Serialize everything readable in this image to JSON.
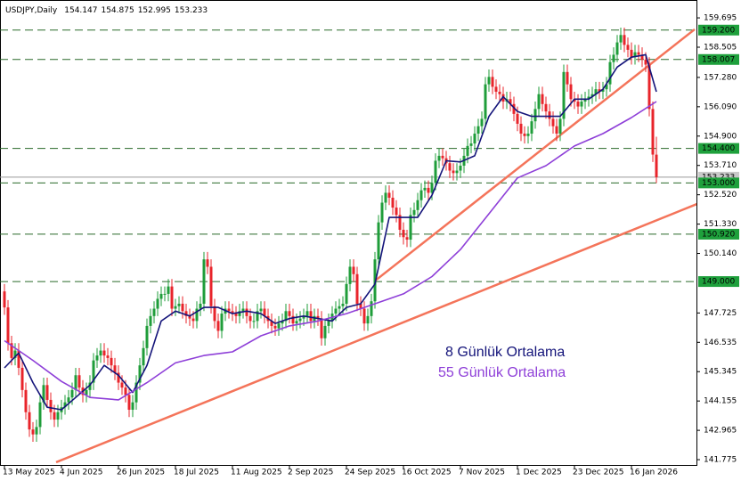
{
  "chart_data": {
    "type": "candlestick",
    "title": "USDJPY,Daily",
    "categories": [
      "13 May 2025",
      null,
      null,
      null,
      null,
      null,
      null,
      null,
      null,
      null,
      null,
      null,
      null,
      null,
      null,
      null,
      "4 Jun 2025",
      null,
      null,
      null,
      null,
      null,
      null,
      null,
      null,
      null,
      null,
      null,
      null,
      null,
      null,
      null,
      "26 Jun 2025",
      null,
      null,
      null,
      null,
      null,
      null,
      null,
      null,
      null,
      null,
      null,
      null,
      null,
      null,
      null,
      "18 Jul 2025",
      null,
      null,
      null,
      null,
      null,
      null,
      null,
      null,
      null,
      null,
      null,
      null,
      null,
      null,
      null,
      "11 Aug 2025",
      null,
      null,
      null,
      null,
      null,
      null,
      null,
      null,
      null,
      null,
      null,
      null,
      null,
      null,
      null,
      "2 Sep 2025",
      null,
      null,
      null,
      null,
      null,
      null,
      null,
      null,
      null,
      null,
      null,
      null,
      null,
      null,
      null,
      "24 Sep 2025",
      null,
      null,
      null,
      null,
      null,
      null,
      null,
      null,
      null,
      null,
      null,
      null,
      null,
      null,
      null,
      "16 Oct 2025",
      null,
      null,
      null,
      null,
      null,
      null,
      null,
      null,
      null,
      null,
      null,
      null,
      null,
      null,
      null,
      "7 Nov 2025",
      null,
      null,
      null,
      null,
      null,
      null,
      null,
      null,
      null,
      null,
      null,
      null,
      null,
      null,
      null,
      "1 Dec 2025",
      null,
      null,
      null,
      null,
      null,
      null,
      null,
      null,
      null,
      null,
      null,
      null,
      null,
      null,
      null,
      "23 Dec 2025",
      null,
      null,
      null,
      null,
      null,
      null,
      null,
      null,
      null,
      null,
      null,
      null,
      null,
      null,
      null,
      "16 Jan 2026",
      null,
      null,
      null,
      null,
      null,
      null,
      null
    ],
    "open": [
      148.6,
      147.95,
      146.5,
      145.9,
      146.2,
      145.5,
      144.6,
      143.7,
      143.0,
      142.8,
      143.1,
      144.1,
      144.8,
      144.2,
      143.7,
      143.4,
      143.7,
      143.9,
      144.1,
      144.3,
      144.6,
      145.2,
      144.7,
      144.4,
      144.6,
      144.9,
      145.8,
      146.0,
      146.2,
      146.0,
      145.9,
      145.6,
      145.3,
      144.9,
      144.7,
      144.4,
      143.8,
      144.1,
      144.9,
      145.6,
      146.3,
      147.2,
      147.6,
      147.9,
      148.3,
      148.5,
      148.5,
      148.8,
      147.9,
      148.0,
      148.1,
      147.8,
      147.6,
      147.5,
      147.4,
      147.9,
      148.1,
      149.9,
      149.6,
      148.0,
      147.4,
      147.0,
      147.7,
      147.9,
      147.8,
      147.7,
      147.6,
      147.8,
      147.9,
      147.6,
      147.4,
      147.4,
      147.8,
      147.9,
      147.6,
      147.4,
      147.2,
      147.1,
      147.3,
      147.4,
      147.8,
      147.6,
      147.3,
      147.4,
      147.5,
      147.6,
      147.8,
      147.4,
      147.6,
      147.5,
      146.7,
      147.2,
      147.4,
      147.7,
      147.9,
      148.0,
      148.1,
      148.9,
      149.6,
      149.3,
      148.1,
      147.9,
      147.3,
      147.6,
      148.2,
      149.9,
      151.4,
      152.2,
      152.6,
      152.4,
      152.0,
      151.7,
      151.1,
      150.8,
      150.7,
      151.7,
      151.9,
      152.3,
      152.7,
      152.8,
      152.6,
      153.0,
      153.9,
      154.1,
      154.0,
      153.8,
      153.5,
      153.4,
      153.5,
      153.7,
      154.1,
      154.5,
      154.6,
      155.0,
      155.3,
      155.6,
      157.0,
      157.3,
      156.9,
      156.7,
      156.6,
      156.3,
      156.4,
      156.2,
      155.8,
      155.4,
      155.0,
      154.9,
      155.0,
      155.5,
      156.0,
      156.6,
      156.2,
      155.9,
      155.6,
      155.3,
      155.0,
      155.6,
      157.5,
      157.0,
      156.4,
      156.3,
      156.1,
      156.3,
      156.4,
      156.5,
      156.6,
      156.8,
      156.7,
      156.8,
      157.0,
      157.9,
      158.2,
      158.7,
      159.0,
      158.6,
      158.4,
      158.1,
      158.3,
      158.2,
      158.0,
      157.8,
      156.0,
      154.147
    ],
    "high": [
      148.9,
      148.25,
      146.8,
      146.5,
      146.5,
      145.8,
      144.9,
      144.0,
      143.3,
      143.4,
      144.4,
      145.1,
      145.1,
      144.5,
      144.0,
      144.0,
      144.2,
      144.4,
      144.6,
      144.9,
      145.5,
      145.5,
      145.0,
      144.9,
      145.2,
      146.1,
      146.3,
      146.5,
      146.5,
      146.3,
      146.2,
      145.9,
      145.6,
      145.2,
      145.0,
      144.7,
      144.4,
      145.2,
      145.9,
      146.6,
      147.5,
      147.9,
      148.2,
      148.6,
      148.8,
      148.8,
      149.1,
      149.1,
      148.3,
      148.4,
      148.4,
      148.1,
      147.9,
      147.8,
      148.2,
      148.4,
      150.2,
      150.2,
      149.9,
      148.3,
      147.7,
      148.0,
      148.2,
      148.2,
      148.1,
      148.0,
      148.1,
      148.2,
      148.2,
      147.9,
      147.7,
      148.1,
      148.2,
      148.2,
      147.9,
      147.7,
      147.5,
      147.6,
      147.7,
      148.1,
      148.1,
      147.9,
      147.7,
      147.8,
      147.9,
      148.1,
      148.1,
      147.9,
      147.9,
      147.8,
      147.5,
      147.7,
      148.0,
      148.2,
      148.3,
      148.4,
      149.2,
      149.9,
      149.9,
      149.6,
      148.4,
      148.2,
      147.9,
      148.5,
      150.2,
      151.7,
      152.5,
      152.9,
      152.9,
      152.7,
      152.3,
      152.0,
      151.4,
      151.1,
      152.0,
      152.2,
      152.6,
      153.0,
      153.1,
      153.1,
      153.3,
      154.2,
      154.4,
      154.4,
      154.3,
      154.1,
      153.8,
      153.8,
      154.0,
      154.4,
      154.8,
      154.9,
      155.3,
      155.6,
      155.9,
      157.3,
      157.6,
      157.6,
      157.2,
      157.0,
      156.9,
      156.7,
      156.7,
      156.5,
      156.1,
      155.7,
      155.3,
      155.3,
      155.8,
      156.3,
      156.9,
      156.9,
      156.5,
      156.2,
      155.9,
      155.6,
      155.9,
      157.8,
      157.8,
      157.3,
      156.7,
      156.6,
      156.6,
      156.7,
      156.8,
      156.9,
      157.1,
      157.1,
      157.1,
      157.3,
      158.2,
      158.5,
      159.0,
      159.3,
      159.3,
      158.9,
      158.7,
      158.6,
      158.6,
      158.5,
      158.3,
      158.1,
      156.3,
      154.875
    ],
    "low": [
      147.65,
      146.2,
      145.6,
      145.6,
      145.2,
      144.3,
      143.4,
      142.7,
      142.5,
      142.5,
      142.8,
      143.8,
      143.9,
      143.4,
      143.1,
      143.1,
      143.4,
      143.6,
      143.8,
      144.0,
      144.3,
      144.4,
      144.1,
      144.1,
      144.3,
      144.6,
      145.5,
      145.7,
      145.7,
      145.6,
      145.3,
      145.0,
      144.6,
      144.4,
      144.1,
      143.5,
      143.5,
      143.8,
      144.6,
      145.3,
      146.0,
      146.9,
      147.3,
      147.6,
      148.0,
      148.2,
      148.2,
      147.6,
      147.6,
      147.7,
      147.5,
      147.3,
      147.2,
      147.1,
      147.1,
      147.6,
      147.8,
      149.3,
      147.7,
      147.1,
      146.7,
      146.7,
      147.4,
      147.5,
      147.4,
      147.3,
      147.3,
      147.5,
      147.3,
      147.1,
      147.1,
      147.1,
      147.5,
      147.3,
      147.1,
      146.9,
      146.8,
      146.8,
      147.0,
      147.1,
      147.3,
      147.0,
      147.0,
      147.1,
      147.2,
      147.3,
      147.1,
      147.1,
      147.2,
      146.4,
      146.4,
      146.9,
      147.1,
      147.4,
      147.6,
      147.7,
      147.8,
      148.6,
      149.0,
      147.8,
      147.6,
      147.0,
      147.0,
      147.3,
      147.9,
      149.6,
      151.1,
      151.9,
      152.1,
      151.7,
      151.4,
      150.8,
      150.5,
      150.4,
      150.4,
      151.4,
      151.6,
      152.0,
      152.4,
      152.3,
      152.3,
      152.7,
      153.6,
      153.7,
      153.5,
      153.2,
      153.1,
      153.1,
      153.2,
      153.4,
      153.8,
      154.2,
      154.3,
      154.7,
      155.0,
      155.3,
      156.7,
      156.6,
      156.4,
      156.3,
      156.0,
      156.0,
      155.9,
      155.5,
      155.1,
      154.7,
      154.6,
      154.6,
      154.7,
      155.2,
      155.7,
      155.9,
      155.6,
      155.3,
      155.0,
      154.7,
      154.7,
      155.3,
      156.7,
      156.1,
      156.0,
      155.8,
      155.8,
      156.0,
      156.1,
      156.2,
      156.3,
      156.4,
      156.4,
      156.5,
      156.7,
      157.6,
      157.9,
      158.4,
      158.3,
      158.1,
      157.8,
      157.8,
      157.9,
      157.7,
      157.5,
      155.7,
      153.85,
      152.995
    ],
    "close": [
      147.95,
      146.5,
      145.9,
      146.2,
      145.5,
      144.6,
      143.7,
      143.0,
      142.8,
      143.1,
      144.1,
      144.8,
      144.2,
      143.7,
      143.4,
      143.7,
      143.9,
      144.1,
      144.3,
      144.6,
      145.2,
      144.7,
      144.4,
      144.6,
      144.9,
      145.8,
      146.0,
      146.2,
      146.0,
      145.9,
      145.6,
      145.3,
      144.9,
      144.7,
      144.4,
      143.8,
      144.1,
      144.9,
      145.6,
      146.3,
      147.2,
      147.6,
      147.9,
      148.3,
      148.5,
      148.5,
      148.8,
      147.9,
      148.0,
      148.1,
      147.8,
      147.6,
      147.5,
      147.4,
      147.9,
      148.1,
      149.9,
      149.6,
      148.0,
      147.4,
      147.0,
      147.7,
      147.9,
      147.8,
      147.7,
      147.6,
      147.8,
      147.9,
      147.6,
      147.4,
      147.4,
      147.8,
      147.9,
      147.6,
      147.4,
      147.2,
      147.1,
      147.3,
      147.4,
      147.8,
      147.6,
      147.3,
      147.4,
      147.5,
      147.6,
      147.8,
      147.4,
      147.6,
      147.5,
      146.7,
      147.2,
      147.4,
      147.7,
      147.9,
      148.0,
      148.1,
      148.9,
      149.6,
      149.3,
      148.1,
      147.9,
      147.3,
      147.6,
      148.2,
      149.9,
      151.4,
      152.2,
      152.6,
      152.4,
      152.0,
      151.7,
      151.1,
      150.8,
      150.7,
      151.7,
      151.9,
      152.3,
      152.7,
      152.8,
      152.6,
      153.0,
      153.9,
      154.1,
      154.0,
      153.8,
      153.5,
      153.4,
      153.5,
      153.7,
      154.1,
      154.5,
      154.6,
      155.0,
      155.3,
      155.6,
      157.0,
      157.3,
      156.9,
      156.7,
      156.6,
      156.3,
      156.4,
      156.2,
      155.8,
      155.4,
      155.0,
      154.9,
      155.0,
      155.5,
      156.0,
      156.6,
      156.2,
      155.9,
      155.6,
      155.3,
      155.0,
      155.6,
      157.5,
      157.0,
      156.4,
      156.3,
      156.1,
      156.3,
      156.4,
      156.5,
      156.6,
      156.8,
      156.7,
      156.8,
      157.0,
      157.9,
      158.2,
      158.7,
      159.0,
      158.6,
      158.4,
      158.1,
      158.3,
      158.2,
      158.0,
      157.8,
      156.0,
      154.15,
      153.233
    ],
    "up_color": "#1f9d3a",
    "down_color": "#e8242b",
    "series": [
      {
        "name": "8 Günlük Ortalama",
        "color": "#14147a",
        "x": [
          0,
          4,
          8,
          12,
          16,
          20,
          24,
          28,
          32,
          36,
          40,
          44,
          48,
          52,
          56,
          60,
          64,
          68,
          72,
          76,
          80,
          84,
          88,
          92,
          96,
          100,
          104,
          108,
          112,
          116,
          120,
          124,
          128,
          132,
          136,
          140,
          144,
          148,
          152,
          156,
          160,
          164,
          168,
          172,
          176,
          180,
          183
        ],
        "values": [
          145.5,
          146.1,
          144.9,
          143.9,
          143.8,
          144.3,
          144.8,
          145.6,
          145.2,
          144.5,
          145.6,
          147.4,
          147.8,
          147.6,
          147.95,
          147.95,
          147.7,
          147.8,
          147.7,
          147.3,
          147.5,
          147.6,
          147.5,
          147.4,
          147.95,
          148.1,
          148.9,
          151.6,
          151.6,
          151.6,
          152.5,
          153.9,
          153.85,
          154.1,
          155.7,
          156.5,
          155.9,
          155.7,
          155.7,
          155.7,
          156.4,
          156.4,
          156.8,
          157.7,
          158.1,
          158.2,
          156.7
        ]
      },
      {
        "name": "55 Günlük Ortalama",
        "color": "#8e3fd8",
        "x": [
          0,
          8,
          16,
          24,
          32,
          40,
          48,
          56,
          64,
          72,
          80,
          88,
          96,
          104,
          112,
          120,
          128,
          136,
          144,
          152,
          160,
          168,
          176,
          183
        ],
        "values": [
          146.6,
          145.8,
          144.95,
          144.3,
          144.2,
          144.9,
          145.7,
          146.0,
          146.15,
          146.8,
          147.2,
          147.4,
          147.7,
          148.1,
          148.5,
          149.2,
          150.3,
          151.75,
          153.2,
          153.7,
          154.5,
          155.0,
          155.65,
          156.3
        ]
      }
    ],
    "levels": [
      {
        "value": 159.2,
        "label": "159.200"
      },
      {
        "value": 158.007,
        "label": "158.007"
      },
      {
        "value": 154.4,
        "label": "154.400"
      },
      {
        "value": 153.0,
        "label": "153.000"
      },
      {
        "value": 150.92,
        "label": "150.920"
      },
      {
        "value": 149.0,
        "label": "149.000"
      }
    ],
    "level_color": "#2a6a2a",
    "trendlines": [
      {
        "from": [
          14.5,
          141.67
        ],
        "to": [
          195,
          152.18
        ]
      },
      {
        "from": [
          103.75,
          149.0
        ],
        "to": [
          193.75,
          159.23
        ]
      }
    ],
    "trendline_color": "#f4745a",
    "ylim": [
      141.56,
      160.42
    ],
    "yticks": [
      159.695,
      158.505,
      {
        "value": 157.28,
        "label": "157.280"
      },
      {
        "value": 156.09,
        "label": "156.090"
      },
      {
        "value": 154.9,
        "label": "154.900"
      },
      {
        "value": 153.71,
        "label": "153.710"
      },
      {
        "value": 152.52,
        "label": "152.520"
      },
      {
        "value": 151.33,
        "label": "151.330"
      },
      {
        "value": 150.14,
        "label": "150.140"
      },
      147.725,
      146.535,
      145.345,
      144.155,
      142.965,
      141.775
    ],
    "grid": false
  }
}
